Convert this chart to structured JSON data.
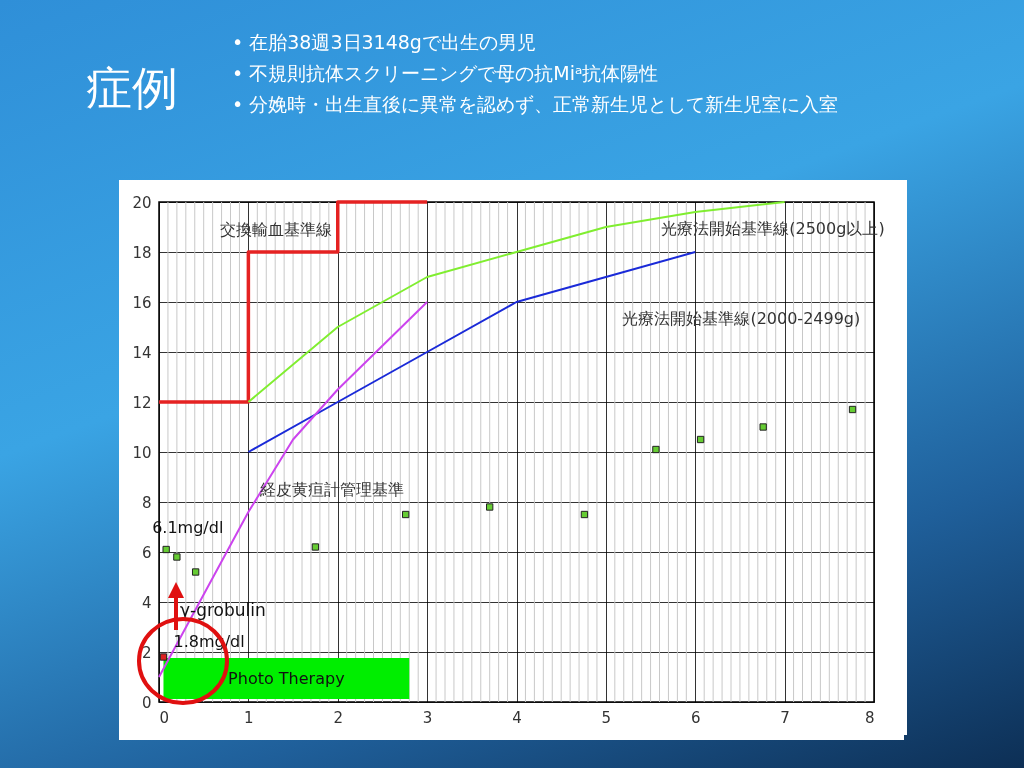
{
  "chart_data": {
    "type": "line",
    "title": "症例",
    "annotations": [
      "• 在胎38週3日3148gで出生の男児",
      "• 不規則抗体スクリーニングで母の抗Miᵃ抗体陽性",
      "• 分娩時・出生直後に異常を認めず、正常新生児として新生児室に入室",
      "γ-grobulin",
      {
        "text": "6.1mg/dl",
        "x": 0.08,
        "y": 6.1
      },
      {
        "text": "1.8mg/dl",
        "x": 0.05,
        "y": 1.8
      }
    ],
    "series": [
      {
        "name": "交換輸血基準線",
        "color": "#e52222",
        "x": [
          0,
          1,
          1,
          2,
          2,
          3
        ],
        "values": [
          12,
          12,
          18,
          18,
          20,
          20
        ]
      },
      {
        "name": "光療法開始基準線(2500g以上)",
        "color": "#80ee30",
        "x": [
          1,
          2,
          3,
          4,
          5,
          6,
          7
        ],
        "values": [
          12,
          15,
          17,
          18,
          19,
          19.6,
          20
        ]
      },
      {
        "name": "光療法開始基準線(2000-2499g)",
        "color": "#1a2ad8",
        "x": [
          1,
          2,
          3,
          4,
          5,
          6
        ],
        "values": [
          10,
          12,
          14,
          16,
          17,
          18
        ]
      },
      {
        "name": "経皮黄疸計管理基準",
        "color": "#cc44ee",
        "x": [
          0,
          1,
          1.5,
          2,
          3
        ],
        "values": [
          1,
          7.6,
          10.5,
          12.5,
          16
        ]
      },
      {
        "type": "scatter",
        "color": "#66cc33",
        "x": [
          0.08,
          0.2,
          0.41,
          1.75,
          2.76,
          3.7,
          4.76,
          5.56,
          6.06,
          6.76,
          7.76
        ],
        "values": [
          6.1,
          5.8,
          5.2,
          6.2,
          7.5,
          7.8,
          7.5,
          10.1,
          10.5,
          11.0,
          11.7
        ]
      },
      {
        "type": "scatter",
        "color": "#dd2222",
        "x": [
          0.05
        ],
        "values": [
          1.8
        ]
      }
    ],
    "bands": [
      {
        "axis": "x",
        "from": 0.05,
        "to": 2.8,
        "label": "Photo Therapy",
        "color": "#00ee00"
      }
    ],
    "xlim": [
      0,
      8
    ],
    "xticks": [
      0,
      1,
      2,
      3,
      4,
      5,
      6,
      7,
      8
    ],
    "ylim": [
      0,
      20
    ],
    "yticks": [
      0,
      2,
      4,
      6,
      8,
      10,
      12,
      14,
      16,
      18,
      20
    ],
    "grid": true,
    "line_style": "solid"
  }
}
